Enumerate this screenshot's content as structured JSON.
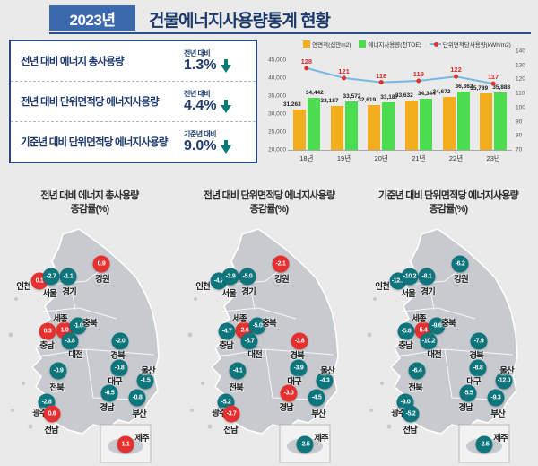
{
  "header": {
    "year_badge": "2023년",
    "title": "건물에너지사용량통계 현황"
  },
  "summary_panel": {
    "rows": [
      {
        "label": "전년 대비 에너지 총사용량",
        "caption": "전년 대비",
        "value": "1.3%",
        "direction": "down"
      },
      {
        "label": "전년 대비 단위면적당 에너지사용량",
        "caption": "전년 대비",
        "value": "4.4%",
        "direction": "down"
      },
      {
        "label": "기준년 대비 단위면적당 에너지사용량",
        "caption": "기준년 대비",
        "value": "9.0%",
        "direction": "down"
      }
    ]
  },
  "chart_data": {
    "type": "bar+line",
    "title": "",
    "categories": [
      "18년",
      "19년",
      "20년",
      "21년",
      "22년",
      "23년"
    ],
    "series": [
      {
        "name": "연면적(십만m2)",
        "type": "bar",
        "color": "#f3ad1d",
        "values": [
          31263,
          32187,
          32619,
          33632,
          34672,
          35789
        ],
        "labels": [
          "31,263",
          "32,187",
          "32,619",
          "33,632",
          "34,672",
          "35,789"
        ]
      },
      {
        "name": "에너지사용량(천TOE)",
        "type": "bar",
        "color": "#4cdc4f",
        "values": [
          34442,
          33572,
          33187,
          34344,
          36362,
          35888
        ],
        "labels": [
          "34,442",
          "33,572",
          "33,187",
          "34,344",
          "36,362",
          "35,888"
        ]
      },
      {
        "name": "단위면적당사용량(kWh/m2)",
        "type": "line",
        "line_color": "#79b8e2",
        "marker_color": "#e03030",
        "values": [
          128,
          121,
          118,
          119,
          122,
          117
        ],
        "labels": [
          "128",
          "121",
          "118",
          "119",
          "122",
          "117"
        ]
      }
    ],
    "y_left": {
      "min": 20000,
      "max": 45000,
      "ticks": [
        "45,000",
        "40,000",
        "35,000",
        "30,000",
        "25,000",
        "20,000"
      ]
    },
    "y_right": {
      "min": 70,
      "max": 140,
      "ticks": [
        "140",
        "130",
        "120",
        "110",
        "100",
        "90",
        "80",
        "70"
      ]
    },
    "legend_position": "top",
    "grid": false
  },
  "maps": [
    {
      "title_line1": "전년 대비 에너지 총사용량",
      "title_line2": "증감률(%)",
      "regions": [
        {
          "name": "인천",
          "value": "0.1",
          "color": "red"
        },
        {
          "name": "서울",
          "value": "-2.7",
          "color": "teal"
        },
        {
          "name": "경기",
          "value": "-1.1",
          "color": "teal"
        },
        {
          "name": "강원",
          "value": "0.9",
          "color": "red"
        },
        {
          "name": "세종",
          "value": "1.0",
          "color": "red"
        },
        {
          "name": "충북",
          "value": "-1.0",
          "color": "teal"
        },
        {
          "name": "충남",
          "value": "0.3",
          "color": "red"
        },
        {
          "name": "대전",
          "value": "-3.8",
          "color": "teal"
        },
        {
          "name": "경북",
          "value": "-2.0",
          "color": "teal"
        },
        {
          "name": "전북",
          "value": "-0.9",
          "color": "teal"
        },
        {
          "name": "대구",
          "value": "-0.8",
          "color": "teal"
        },
        {
          "name": "울산",
          "value": "-1.5",
          "color": "teal"
        },
        {
          "name": "경남",
          "value": "-0.5",
          "color": "teal"
        },
        {
          "name": "부산",
          "value": "-0.8",
          "color": "teal"
        },
        {
          "name": "광주",
          "value": "-2.8",
          "color": "teal"
        },
        {
          "name": "전남",
          "value": "0.6",
          "color": "red"
        },
        {
          "name": "제주",
          "value": "1.1",
          "color": "red"
        }
      ]
    },
    {
      "title_line1": "전년 대비 단위면적당 에너지사용량",
      "title_line2": "증감률(%)",
      "regions": [
        {
          "name": "인천",
          "value": "-4.7",
          "color": "teal"
        },
        {
          "name": "서울",
          "value": "-3.9",
          "color": "teal"
        },
        {
          "name": "경기",
          "value": "-5.0",
          "color": "teal"
        },
        {
          "name": "강원",
          "value": "-2.1",
          "color": "red"
        },
        {
          "name": "세종",
          "value": "-2.6",
          "color": "red"
        },
        {
          "name": "충북",
          "value": "-5.0",
          "color": "teal"
        },
        {
          "name": "충남",
          "value": "-4.7",
          "color": "teal"
        },
        {
          "name": "대전",
          "value": "-5.7",
          "color": "teal"
        },
        {
          "name": "경북",
          "value": "-3.8",
          "color": "red"
        },
        {
          "name": "전북",
          "value": "-4.1",
          "color": "teal"
        },
        {
          "name": "대구",
          "value": "-3.9",
          "color": "teal"
        },
        {
          "name": "울산",
          "value": "-4.3",
          "color": "teal"
        },
        {
          "name": "경남",
          "value": "-3.0",
          "color": "red"
        },
        {
          "name": "부산",
          "value": "-4.5",
          "color": "teal"
        },
        {
          "name": "광주",
          "value": "-5.2",
          "color": "teal"
        },
        {
          "name": "전남",
          "value": "-3.7",
          "color": "red"
        },
        {
          "name": "제주",
          "value": "-2.5",
          "color": "teal"
        }
      ]
    },
    {
      "title_line1": "기준년 대비 단위면적당 에너지사용량",
      "title_line2": "증감률(%)",
      "regions": [
        {
          "name": "인천",
          "value": "-12.1",
          "color": "teal"
        },
        {
          "name": "서울",
          "value": "-10.2",
          "color": "teal"
        },
        {
          "name": "경기",
          "value": "-8.1",
          "color": "teal"
        },
        {
          "name": "강원",
          "value": "-6.2",
          "color": "teal"
        },
        {
          "name": "세종",
          "value": "5.4",
          "color": "red"
        },
        {
          "name": "충북",
          "value": "-9.6",
          "color": "teal"
        },
        {
          "name": "충남",
          "value": "-5.8",
          "color": "teal"
        },
        {
          "name": "대전",
          "value": "-10.2",
          "color": "teal"
        },
        {
          "name": "경북",
          "value": "-7.9",
          "color": "teal"
        },
        {
          "name": "전북",
          "value": "-6.4",
          "color": "teal"
        },
        {
          "name": "대구",
          "value": "-8.8",
          "color": "teal"
        },
        {
          "name": "울산",
          "value": "-12.0",
          "color": "teal"
        },
        {
          "name": "경남",
          "value": "-5.5",
          "color": "teal"
        },
        {
          "name": "부산",
          "value": "-9.3",
          "color": "teal"
        },
        {
          "name": "광주",
          "value": "-9.0",
          "color": "teal"
        },
        {
          "name": "전남",
          "value": "-5.2",
          "color": "teal"
        },
        {
          "name": "제주",
          "value": "-2.5",
          "color": "teal"
        }
      ]
    }
  ],
  "colors": {
    "accent_blue": "#3c69ae",
    "navy": "#1c3a6b",
    "badge_teal": "#0f757c",
    "badge_red": "#e53030",
    "bar_yellow": "#f3ad1d",
    "bar_green": "#4cdc4f",
    "line_blue": "#79b8e2",
    "map_gray": "#c7cbd0",
    "background": "#eaeaea"
  }
}
